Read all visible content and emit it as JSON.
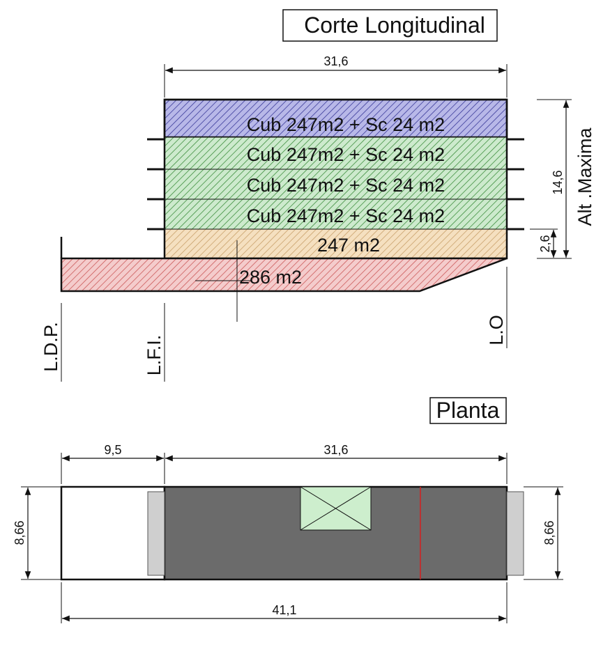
{
  "section": {
    "title": "Corte Longitudinal",
    "width_dim": "31,6",
    "height_dim": "14,6",
    "base_dim": "2,6",
    "height_label": "Alt .Maxima",
    "floors": [
      {
        "label": "Cub 247m2 + Sc 24 m2",
        "color": "#b3b3e6",
        "hatch": "#3a3a9a"
      },
      {
        "label": "Cub 247m2 + Sc 24 m2",
        "color": "#c6e6c6",
        "hatch": "#3f8f3f"
      },
      {
        "label": "Cub 247m2 + Sc 24 m2",
        "color": "#c6e6c6",
        "hatch": "#3f8f3f"
      },
      {
        "label": "Cub 247m2 + Sc 24 m2",
        "color": "#c6e6c6",
        "hatch": "#3f8f3f"
      },
      {
        "label": "247 m2",
        "color": "#f2dcb8",
        "hatch": "#c9a06a"
      }
    ],
    "basement": {
      "label": "286 m2",
      "color": "#f2c4c4",
      "hatch": "#cc5a5a"
    },
    "line_labels": [
      "L.D.P.",
      "L.F.I.",
      "L.O"
    ]
  },
  "plan": {
    "title": "Planta",
    "dim_front": "9,5",
    "dim_building": "31,6",
    "dim_total": "41,1",
    "dim_depth_left": "8,66",
    "dim_depth_right": "8,66",
    "colors": {
      "building": "#6b6b6b",
      "core": "#cdeecd",
      "side": "#cfcfcf",
      "red_line": "#d42020"
    }
  }
}
